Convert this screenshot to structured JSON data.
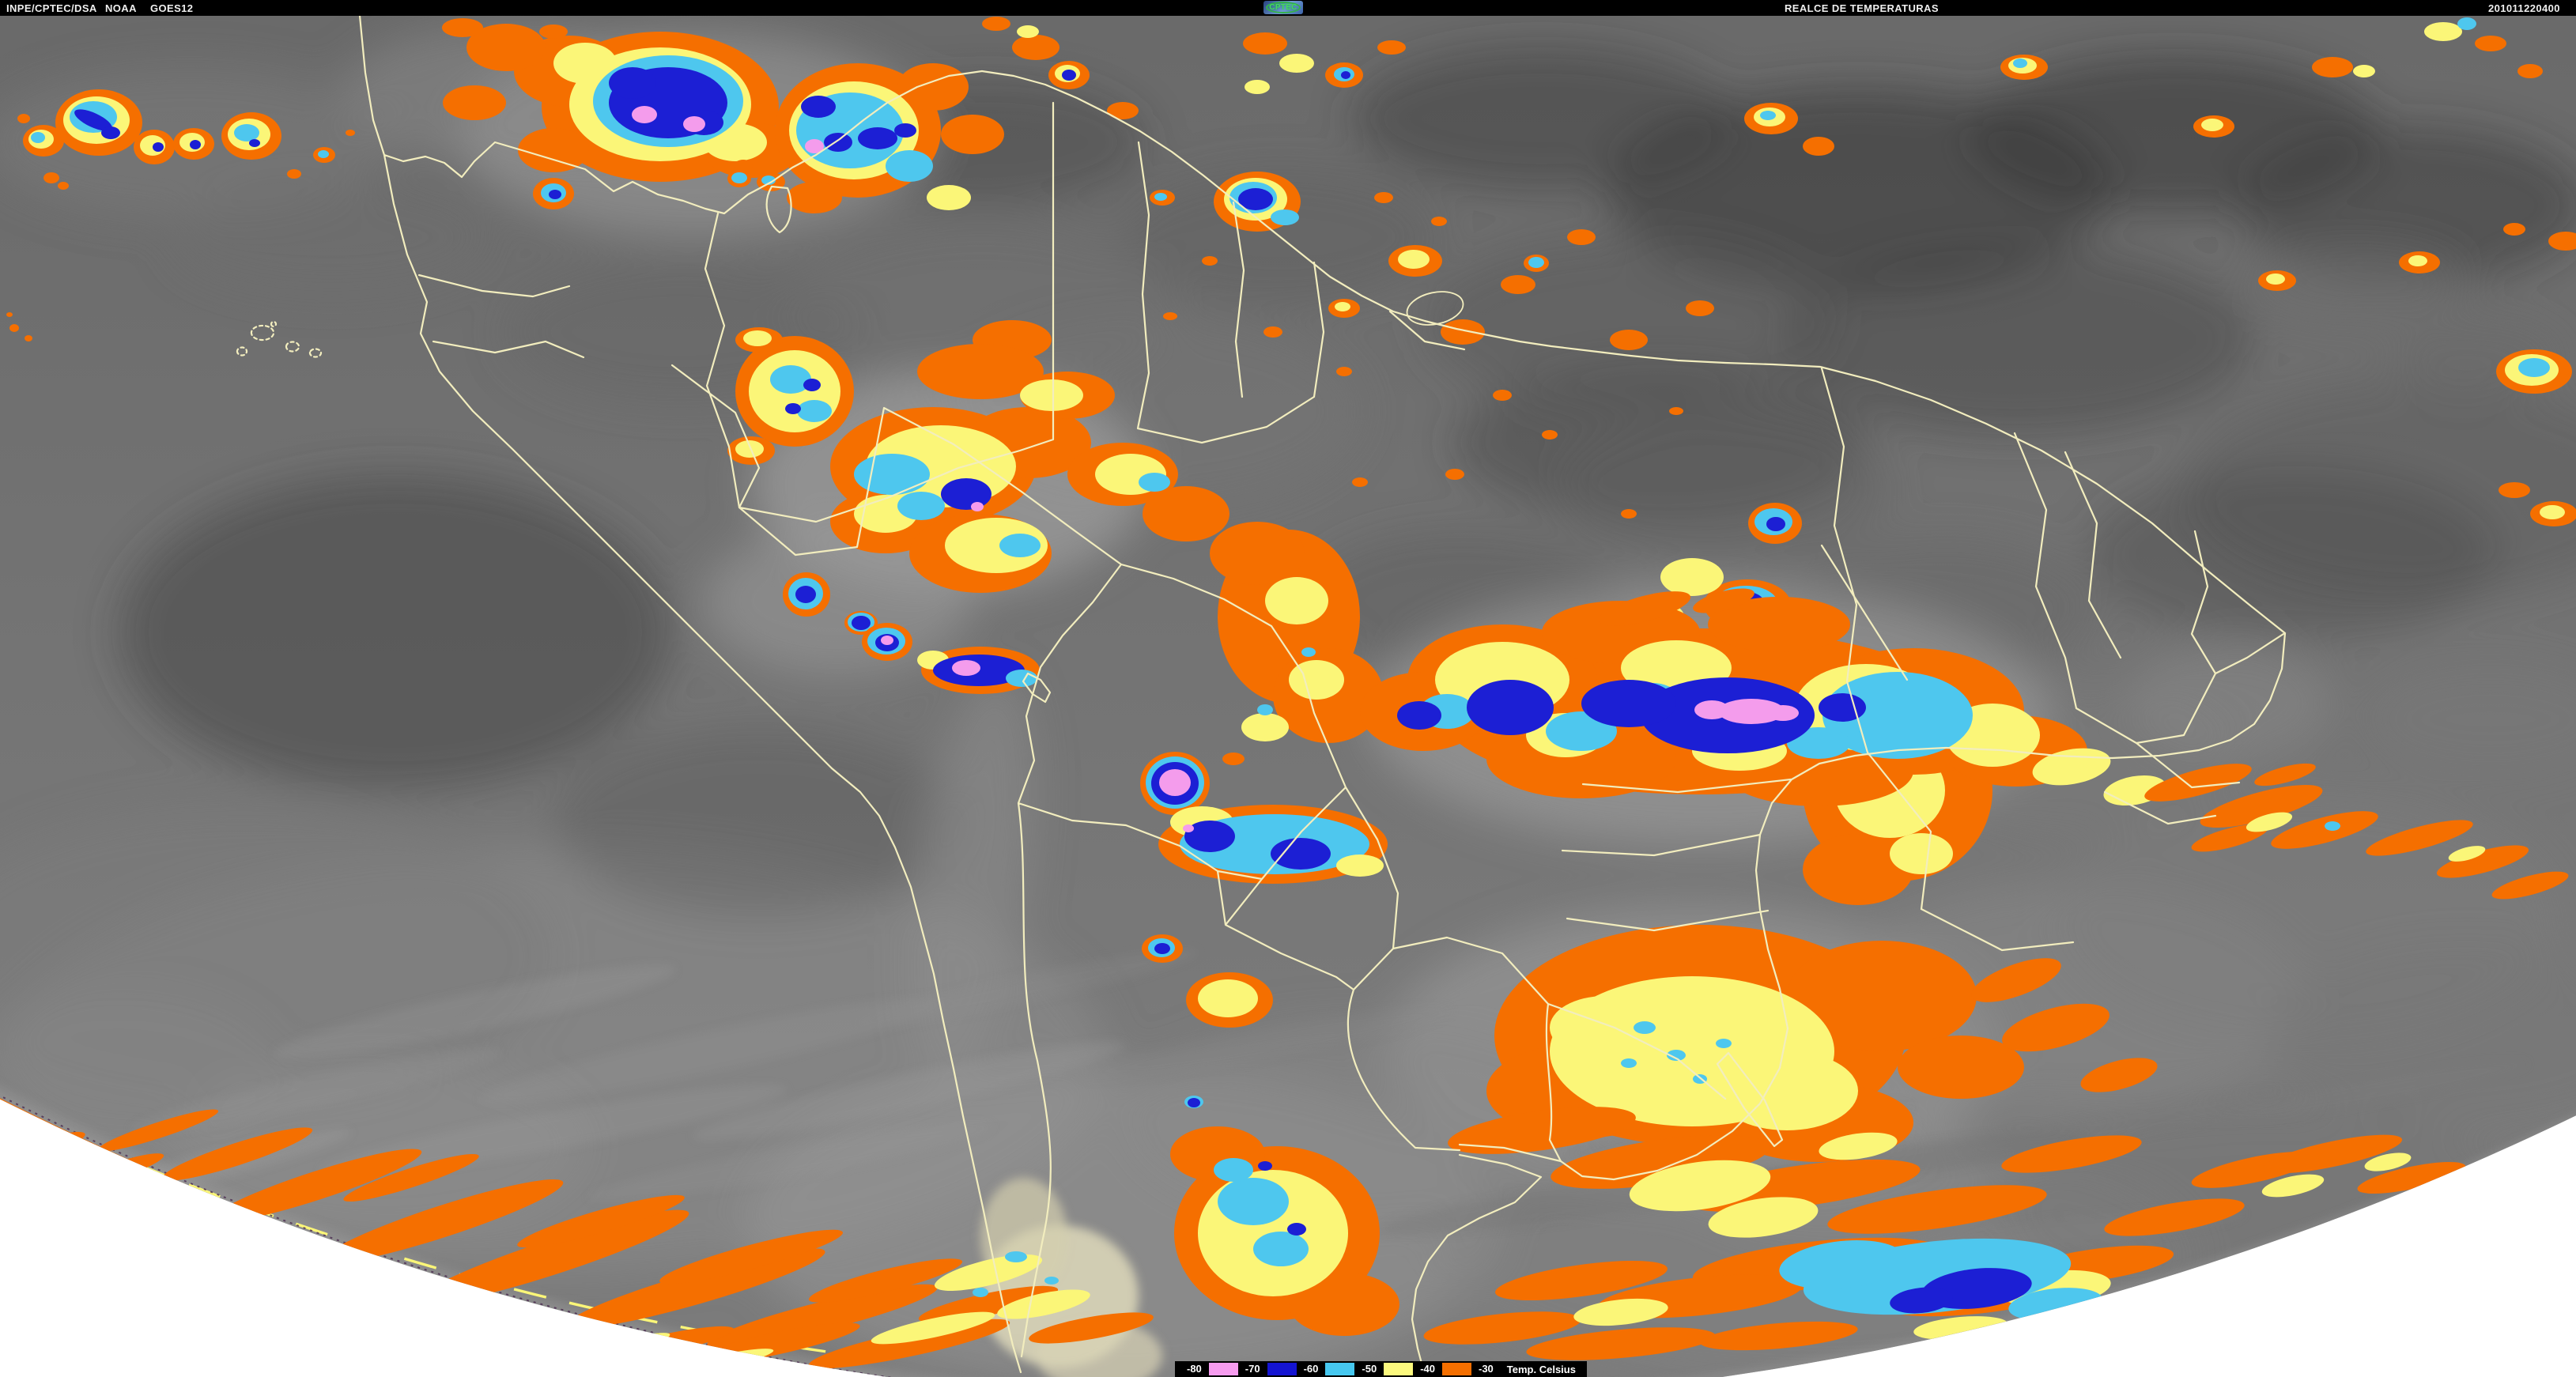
{
  "header": {
    "agency": "INPE/CPTEC/DSA",
    "org": "NOAA",
    "satellite": "GOES12",
    "logo_text": "CPTEC",
    "product_title": "REALCE DE TEMPERATURAS",
    "timestamp": "201011220400"
  },
  "legend": {
    "unit_label": "Temp. Celsius",
    "items": [
      {
        "label": "-80",
        "swatch_color": "#F79CEF"
      },
      {
        "label": "-70",
        "swatch_color": "#1414D2"
      },
      {
        "label": "-60",
        "swatch_color": "#46C8F0"
      },
      {
        "label": "-50",
        "swatch_color": "#FCF97E"
      },
      {
        "label": "-40",
        "swatch_color": "#F56F00"
      },
      {
        "label": "-30",
        "swatch_color": null
      }
    ]
  },
  "map": {
    "palette": {
      "enhancement_orange": "#F56F00",
      "enhancement_yellow": "#FBF678",
      "enhancement_cyan": "#4EC7EE",
      "enhancement_blue": "#1C1FD4",
      "enhancement_pink": "#F49CEC",
      "country_borders": "#F2EDBE",
      "space_background": "#FFFFFF",
      "cloud_gray_base": "#4A4A4A"
    }
  }
}
